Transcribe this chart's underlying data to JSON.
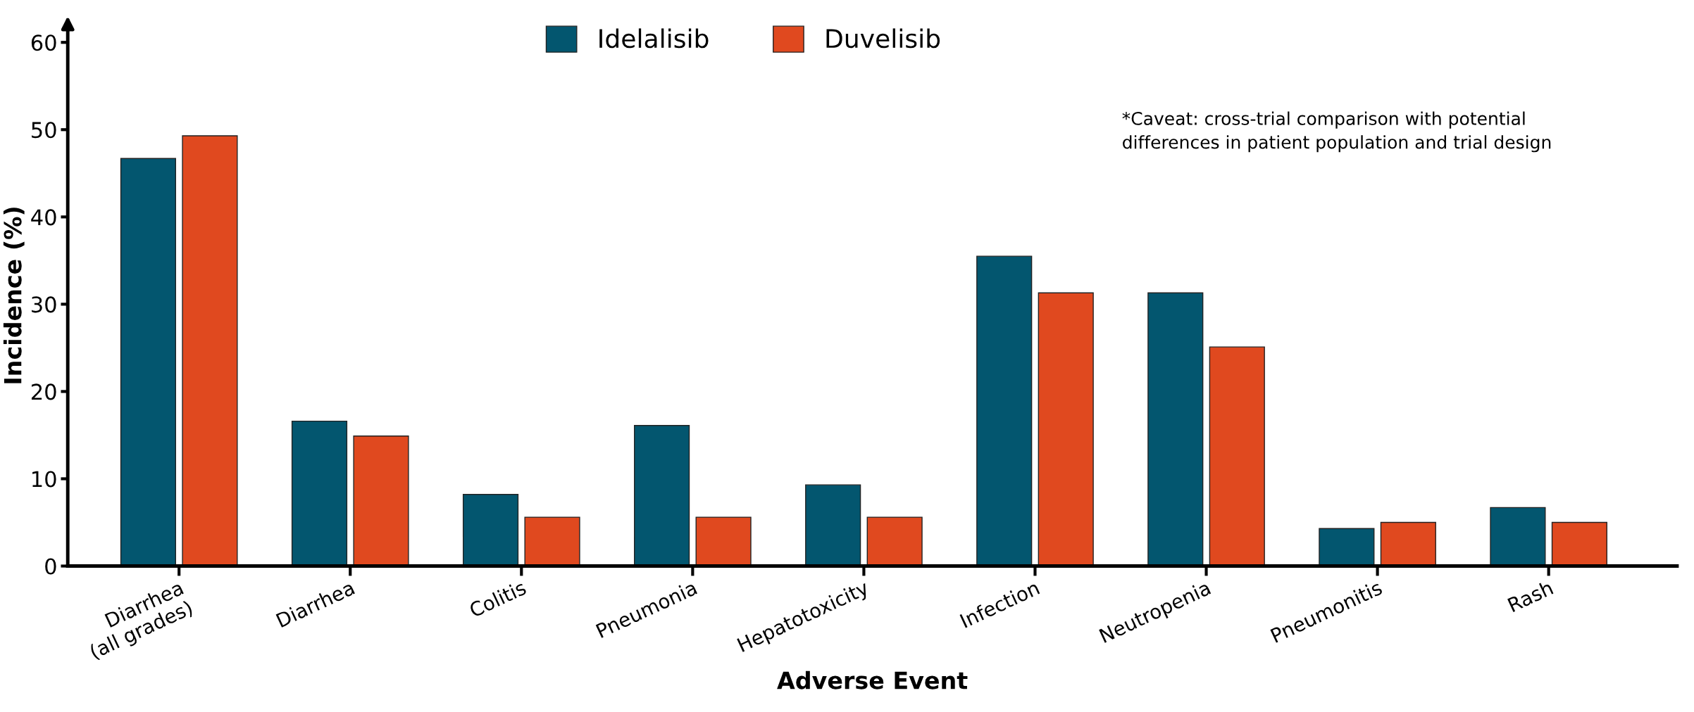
{
  "chart_data": {
    "type": "bar",
    "xlabel": "Adverse Event",
    "ylabel": "Incidence (%)",
    "categories": [
      "Diarrhea\n(all grades)",
      "Diarrhea",
      "Colitis",
      "Pneumonia",
      "Hepatotoxicity",
      "Infection",
      "Neutropenia",
      "Pneumonitis",
      "Rash"
    ],
    "series": [
      {
        "name": "Idelalisib",
        "color": "#03566f",
        "values": [
          46.7,
          16.6,
          8.2,
          16.1,
          9.3,
          35.5,
          31.3,
          4.3,
          6.7
        ]
      },
      {
        "name": "Duvelisib",
        "color": "#e0491f",
        "values": [
          49.3,
          14.9,
          5.6,
          5.6,
          5.6,
          31.3,
          25.1,
          5.0,
          5.0
        ]
      }
    ],
    "ylim": [
      0,
      62
    ],
    "yticks": [
      0,
      10,
      20,
      30,
      40,
      50,
      60
    ],
    "grid": false,
    "legend": "top",
    "annotations": [
      "*Caveat: cross-trial comparison with potential\ndifferences in patient population and trial design"
    ]
  }
}
